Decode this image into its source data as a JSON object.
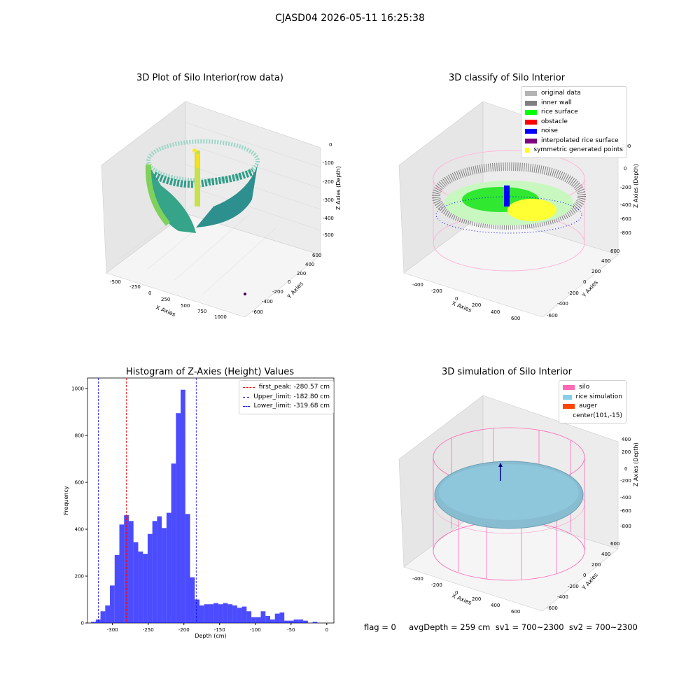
{
  "figure": {
    "title": "CJASD04 2026-05-11 16:25:38"
  },
  "panel_raw": {
    "title": "3D Plot of Silo Interior(row data)",
    "xlabel": "X Axies",
    "ylabel": "Y Axies",
    "zlabel": "Z Axies (Depth)",
    "x_ticks": [
      "-500",
      "-250",
      "0",
      "250",
      "500",
      "750",
      "1000"
    ],
    "y_ticks": [
      "600",
      "400",
      "200",
      "0",
      "-200",
      "-400",
      "-600"
    ],
    "z_ticks": [
      "0",
      "-100",
      "-200",
      "-300",
      "-400",
      "-500"
    ]
  },
  "panel_classify": {
    "title": "3D classify of Silo Interior",
    "xlabel": "X Axies",
    "ylabel": "Y Axies",
    "zlabel": "Z Axies (Depth)",
    "x_ticks": [
      "-400",
      "-200",
      "0",
      "200",
      "400",
      "600"
    ],
    "y_ticks": [
      "600",
      "400",
      "200",
      "0",
      "-200",
      "-400",
      "-600"
    ],
    "z_ticks": [
      "200",
      "0",
      "-200",
      "-400",
      "-600",
      "-800"
    ],
    "legend": [
      {
        "label": "original data",
        "color": "#b3b3b3"
      },
      {
        "label": "inner wall",
        "color": "#808080"
      },
      {
        "label": "rice surface",
        "color": "#00ff00"
      },
      {
        "label": "obstacle",
        "color": "#ff0000"
      },
      {
        "label": "noise",
        "color": "#0000ff"
      },
      {
        "label": "interpolated rice surface",
        "color": "#800080"
      },
      {
        "label": "symmetric generated points",
        "color": "#ffff00"
      }
    ]
  },
  "panel_sim": {
    "title": "3D simulation of Silo Interior",
    "xlabel": "X Axies",
    "ylabel": "Y Axies",
    "zlabel": "Z Axies (Depth)",
    "x_ticks": [
      "-400",
      "-200",
      "0",
      "200",
      "400",
      "600"
    ],
    "y_ticks": [
      "600",
      "400",
      "200",
      "0",
      "-200",
      "-400",
      "-600"
    ],
    "z_ticks": [
      "400",
      "200",
      "0",
      "-200",
      "-400",
      "-600",
      "-800"
    ],
    "legend": [
      {
        "label": "silo",
        "color": "#ff69b4"
      },
      {
        "label": "rice simulation",
        "color": "#87ceeb"
      },
      {
        "label": "auger",
        "color": "#ff4500"
      },
      {
        "label": "center(101,-15)",
        "color": ""
      }
    ]
  },
  "footer": {
    "text": "flag = 0     avgDepth = 259 cm  sv1 = 700~2300  sv2 = 700~2300"
  },
  "chart_data": {
    "type": "bar",
    "title": "Histogram of Z-Axies (Height) Values",
    "xlabel": "Depth (cm)",
    "ylabel": "Frequency",
    "xlim": [
      -335,
      10
    ],
    "ylim": [
      0,
      1045
    ],
    "x_ticks": [
      -300,
      -250,
      -200,
      -150,
      -100,
      -50,
      0
    ],
    "y_ticks": [
      0,
      200,
      400,
      600,
      800,
      1000
    ],
    "bin_width": 6.6,
    "bin_start": -330,
    "values": [
      5,
      15,
      50,
      75,
      160,
      290,
      420,
      460,
      435,
      345,
      305,
      295,
      380,
      435,
      455,
      405,
      470,
      680,
      895,
      995,
      465,
      195,
      100,
      75,
      80,
      80,
      85,
      80,
      85,
      80,
      75,
      65,
      70,
      50,
      25,
      25,
      50,
      30,
      15,
      40,
      45,
      10,
      10,
      15,
      15,
      10,
      0,
      5
    ],
    "color": "#0000ff",
    "vlines": [
      {
        "label": "first_peak: -280.57 cm",
        "x": -280.57,
        "color": "#ff0000"
      },
      {
        "label": "Upper_limit: -182.80 cm",
        "x": -182.8,
        "color": "#0000ff"
      },
      {
        "label": "Lower_limit: -319.68 cm",
        "x": -319.68,
        "color": "#0000ff"
      }
    ]
  }
}
